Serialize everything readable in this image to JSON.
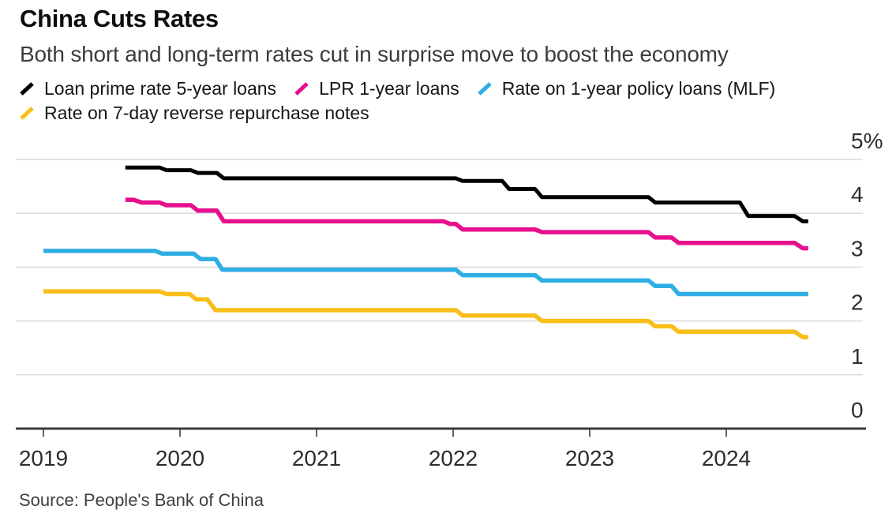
{
  "header": {
    "title": "China Cuts Rates",
    "subtitle": "Both short and long-term rates cut in surprise move to boost the economy"
  },
  "legend": {
    "items": [
      {
        "label": "Loan prime rate 5-year loans",
        "color": "#000000"
      },
      {
        "label": "LPR 1-year loans",
        "color": "#E6108E"
      },
      {
        "label": "Rate on 1-year policy loans (MLF)",
        "color": "#2FAEE3"
      },
      {
        "label": "Rate on 7-day reverse repurchase notes",
        "color": "#F9BE19"
      }
    ]
  },
  "footer": {
    "source": "Source: People's Bank of China"
  },
  "colors": {
    "grid": "#DBDBDB",
    "axis_baseline": "#3C3C3C",
    "axis_label": "#2D2D2D",
    "background": "#FFFFFF"
  },
  "chart_data": {
    "type": "line",
    "title": "China Cuts Rates",
    "subtitle": "Both short and long-term rates cut in surprise move to boost the economy",
    "grid": "horizontal",
    "legend_position": "top",
    "x_axis": {
      "ticks": [
        2019,
        2020,
        2021,
        2022,
        2023,
        2024
      ],
      "labels": [
        "2019",
        "2020",
        "2021",
        "2022",
        "2023",
        "2024"
      ],
      "range": [
        2019,
        2024.95
      ]
    },
    "y_axis": {
      "ticks": [
        0,
        1,
        2,
        3,
        4,
        5
      ],
      "labels": [
        "0",
        "1",
        "2",
        "3",
        "4",
        "5%"
      ],
      "range": [
        0,
        5
      ],
      "unit": "percent"
    },
    "series": [
      {
        "name": "Loan prime rate 5-year loans",
        "color": "#000000",
        "points": [
          [
            2019.6,
            4.85
          ],
          [
            2019.85,
            4.85
          ],
          [
            2019.9,
            4.8
          ],
          [
            2020.08,
            4.8
          ],
          [
            2020.13,
            4.75
          ],
          [
            2020.27,
            4.75
          ],
          [
            2020.32,
            4.65
          ],
          [
            2022.02,
            4.65
          ],
          [
            2022.07,
            4.6
          ],
          [
            2022.36,
            4.6
          ],
          [
            2022.41,
            4.45
          ],
          [
            2022.6,
            4.45
          ],
          [
            2022.65,
            4.3
          ],
          [
            2023.43,
            4.3
          ],
          [
            2023.48,
            4.2
          ],
          [
            2024.1,
            4.2
          ],
          [
            2024.16,
            3.95
          ],
          [
            2024.5,
            3.95
          ],
          [
            2024.56,
            3.85
          ],
          [
            2024.6,
            3.85
          ]
        ]
      },
      {
        "name": "LPR 1-year loans",
        "color": "#E6108E",
        "points": [
          [
            2019.6,
            4.25
          ],
          [
            2019.66,
            4.25
          ],
          [
            2019.72,
            4.2
          ],
          [
            2019.85,
            4.2
          ],
          [
            2019.9,
            4.15
          ],
          [
            2020.08,
            4.15
          ],
          [
            2020.13,
            4.05
          ],
          [
            2020.27,
            4.05
          ],
          [
            2020.32,
            3.85
          ],
          [
            2021.93,
            3.85
          ],
          [
            2021.98,
            3.8
          ],
          [
            2022.02,
            3.8
          ],
          [
            2022.07,
            3.7
          ],
          [
            2022.6,
            3.7
          ],
          [
            2022.65,
            3.65
          ],
          [
            2023.43,
            3.65
          ],
          [
            2023.48,
            3.55
          ],
          [
            2023.6,
            3.55
          ],
          [
            2023.65,
            3.45
          ],
          [
            2024.5,
            3.45
          ],
          [
            2024.56,
            3.35
          ],
          [
            2024.6,
            3.35
          ]
        ]
      },
      {
        "name": "Rate on 1-year policy loans (MLF)",
        "color": "#2FAEE3",
        "points": [
          [
            2019.0,
            3.3
          ],
          [
            2019.82,
            3.3
          ],
          [
            2019.87,
            3.25
          ],
          [
            2020.1,
            3.25
          ],
          [
            2020.15,
            3.15
          ],
          [
            2020.26,
            3.15
          ],
          [
            2020.31,
            2.95
          ],
          [
            2022.02,
            2.95
          ],
          [
            2022.07,
            2.85
          ],
          [
            2022.6,
            2.85
          ],
          [
            2022.65,
            2.75
          ],
          [
            2023.43,
            2.75
          ],
          [
            2023.48,
            2.65
          ],
          [
            2023.6,
            2.65
          ],
          [
            2023.65,
            2.5
          ],
          [
            2024.6,
            2.5
          ]
        ]
      },
      {
        "name": "Rate on 7-day reverse repurchase notes",
        "color": "#F9BE19",
        "points": [
          [
            2019.0,
            2.55
          ],
          [
            2019.85,
            2.55
          ],
          [
            2019.9,
            2.5
          ],
          [
            2020.07,
            2.5
          ],
          [
            2020.12,
            2.4
          ],
          [
            2020.2,
            2.4
          ],
          [
            2020.26,
            2.2
          ],
          [
            2022.02,
            2.2
          ],
          [
            2022.07,
            2.1
          ],
          [
            2022.6,
            2.1
          ],
          [
            2022.65,
            2.0
          ],
          [
            2023.43,
            2.0
          ],
          [
            2023.48,
            1.9
          ],
          [
            2023.6,
            1.9
          ],
          [
            2023.65,
            1.8
          ],
          [
            2024.5,
            1.8
          ],
          [
            2024.56,
            1.7
          ],
          [
            2024.6,
            1.7
          ]
        ]
      }
    ]
  }
}
